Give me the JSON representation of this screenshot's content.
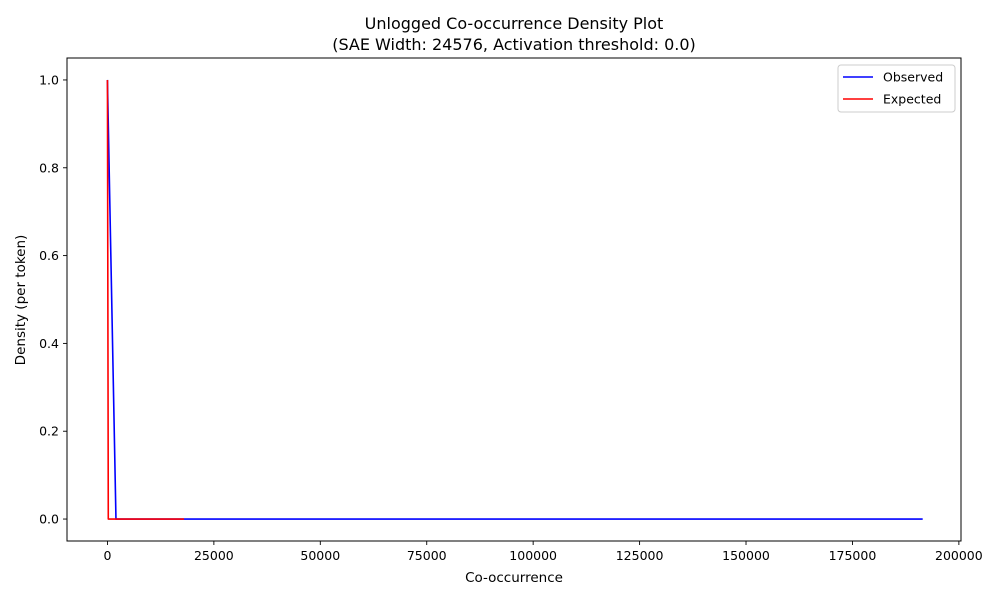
{
  "chart_data": {
    "type": "line",
    "title": "Unlogged Co-occurrence Density Plot",
    "subtitle": "(SAE Width: 24576, Activation threshold: 0.0)",
    "xlabel": "Co-occurrence",
    "ylabel": "Density (per token)",
    "xlim": [
      -9500,
      200500
    ],
    "ylim": [
      -0.05,
      1.05
    ],
    "xticks": [
      0,
      25000,
      50000,
      75000,
      100000,
      125000,
      150000,
      175000,
      200000
    ],
    "yticks": [
      0.0,
      0.2,
      0.4,
      0.6,
      0.8,
      1.0
    ],
    "xtick_labels": [
      "0",
      "25000",
      "50000",
      "75000",
      "100000",
      "125000",
      "150000",
      "175000",
      "200000"
    ],
    "ytick_labels": [
      "0.0",
      "0.2",
      "0.4",
      "0.6",
      "0.8",
      "1.0"
    ],
    "grid": false,
    "legend_position": "top-right",
    "series": [
      {
        "name": "Observed",
        "color": "#0000ff",
        "x": [
          0,
          2000,
          191500
        ],
        "y": [
          1.0,
          0.0,
          0.0
        ]
      },
      {
        "name": "Expected",
        "color": "#ff0000",
        "x": [
          0,
          200,
          18000
        ],
        "y": [
          1.0,
          0.0,
          0.0
        ]
      }
    ]
  }
}
